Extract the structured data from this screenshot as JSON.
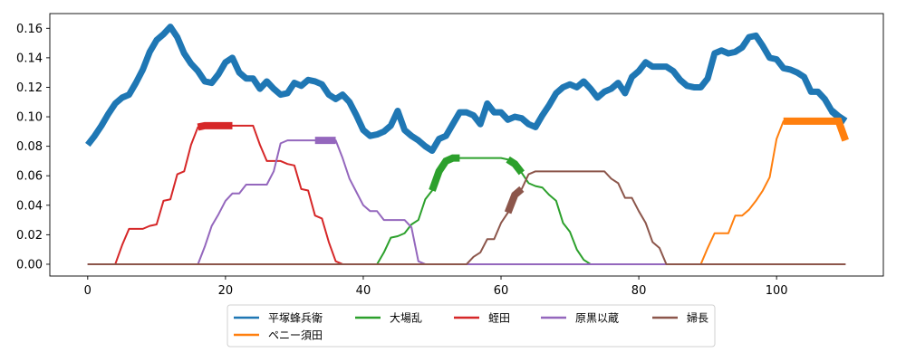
{
  "chart_data": {
    "type": "line",
    "xlim": [
      -5.5,
      115.5
    ],
    "ylim": [
      -0.008,
      0.17
    ],
    "x_ticks": [
      0,
      20,
      40,
      60,
      80,
      100
    ],
    "y_ticks": [
      0.0,
      0.02,
      0.04,
      0.06,
      0.08,
      0.1,
      0.12,
      0.14,
      0.16
    ],
    "x_tick_labels": [
      "0",
      "20",
      "40",
      "60",
      "80",
      "100"
    ],
    "y_tick_labels": [
      "0.00",
      "0.02",
      "0.04",
      "0.06",
      "0.08",
      "0.10",
      "0.12",
      "0.14",
      "0.16"
    ],
    "grid": false,
    "legend_position": "bottom-center",
    "series": [
      {
        "name": "平塚蜂兵衛",
        "color": "#1f77b4",
        "points": [
          [
            0,
            0.081
          ],
          [
            1,
            0.087
          ],
          [
            2,
            0.094
          ],
          [
            3,
            0.102
          ],
          [
            4,
            0.109
          ],
          [
            5,
            0.113
          ],
          [
            6,
            0.115
          ],
          [
            7,
            0.123
          ],
          [
            8,
            0.132
          ],
          [
            9,
            0.144
          ],
          [
            10,
            0.152
          ],
          [
            11,
            0.156
          ],
          [
            12,
            0.161
          ],
          [
            13,
            0.154
          ],
          [
            14,
            0.143
          ],
          [
            15,
            0.136
          ],
          [
            16,
            0.131
          ],
          [
            17,
            0.124
          ],
          [
            18,
            0.123
          ],
          [
            19,
            0.129
          ],
          [
            20,
            0.137
          ],
          [
            21,
            0.14
          ],
          [
            22,
            0.13
          ],
          [
            23,
            0.126
          ],
          [
            24,
            0.126
          ],
          [
            25,
            0.119
          ],
          [
            26,
            0.124
          ],
          [
            27,
            0.119
          ],
          [
            28,
            0.115
          ],
          [
            29,
            0.116
          ],
          [
            30,
            0.123
          ],
          [
            31,
            0.121
          ],
          [
            32,
            0.125
          ],
          [
            33,
            0.124
          ],
          [
            34,
            0.122
          ],
          [
            35,
            0.115
          ],
          [
            36,
            0.112
          ],
          [
            37,
            0.115
          ],
          [
            38,
            0.11
          ],
          [
            39,
            0.101
          ],
          [
            40,
            0.091
          ],
          [
            41,
            0.087
          ],
          [
            42,
            0.088
          ],
          [
            43,
            0.09
          ],
          [
            44,
            0.094
          ],
          [
            45,
            0.104
          ],
          [
            46,
            0.091
          ],
          [
            47,
            0.087
          ],
          [
            48,
            0.084
          ],
          [
            49,
            0.08
          ],
          [
            50,
            0.077
          ],
          [
            51,
            0.085
          ],
          [
            52,
            0.087
          ],
          [
            53,
            0.095
          ],
          [
            54,
            0.103
          ],
          [
            55,
            0.103
          ],
          [
            56,
            0.101
          ],
          [
            57,
            0.095
          ],
          [
            58,
            0.109
          ],
          [
            59,
            0.103
          ],
          [
            60,
            0.103
          ],
          [
            61,
            0.098
          ],
          [
            62,
            0.1
          ],
          [
            63,
            0.099
          ],
          [
            64,
            0.095
          ],
          [
            65,
            0.093
          ],
          [
            66,
            0.101
          ],
          [
            67,
            0.108
          ],
          [
            68,
            0.116
          ],
          [
            69,
            0.12
          ],
          [
            70,
            0.122
          ],
          [
            71,
            0.12
          ],
          [
            72,
            0.124
          ],
          [
            73,
            0.119
          ],
          [
            74,
            0.113
          ],
          [
            75,
            0.117
          ],
          [
            76,
            0.119
          ],
          [
            77,
            0.123
          ],
          [
            78,
            0.116
          ],
          [
            79,
            0.127
          ],
          [
            80,
            0.131
          ],
          [
            81,
            0.137
          ],
          [
            82,
            0.134
          ],
          [
            83,
            0.134
          ],
          [
            84,
            0.134
          ],
          [
            85,
            0.131
          ],
          [
            86,
            0.125
          ],
          [
            87,
            0.121
          ],
          [
            88,
            0.12
          ],
          [
            89,
            0.12
          ],
          [
            90,
            0.126
          ],
          [
            91,
            0.143
          ],
          [
            92,
            0.145
          ],
          [
            93,
            0.143
          ],
          [
            94,
            0.144
          ],
          [
            95,
            0.147
          ],
          [
            96,
            0.154
          ],
          [
            97,
            0.155
          ],
          [
            98,
            0.148
          ],
          [
            99,
            0.14
          ],
          [
            100,
            0.139
          ],
          [
            101,
            0.133
          ],
          [
            102,
            0.132
          ],
          [
            103,
            0.13
          ],
          [
            104,
            0.127
          ],
          [
            105,
            0.117
          ],
          [
            106,
            0.117
          ],
          [
            107,
            0.112
          ],
          [
            108,
            0.104
          ],
          [
            109,
            0.1
          ],
          [
            110,
            0.097
          ]
        ]
      },
      {
        "name": "ペニー須田",
        "color": "#ff7f0e",
        "points": [
          [
            0,
            0
          ],
          [
            89,
            0
          ],
          [
            90,
            0.011
          ],
          [
            91,
            0.021
          ],
          [
            92,
            0.021
          ],
          [
            93,
            0.021
          ],
          [
            94,
            0.033
          ],
          [
            95,
            0.033
          ],
          [
            96,
            0.037
          ],
          [
            97,
            0.043
          ],
          [
            98,
            0.05
          ],
          [
            99,
            0.059
          ],
          [
            100,
            0.085
          ],
          [
            101,
            0.097
          ],
          [
            102,
            0.097
          ],
          [
            103,
            0.097
          ],
          [
            104,
            0.097
          ],
          [
            105,
            0.097
          ],
          [
            106,
            0.097
          ],
          [
            107,
            0.097
          ],
          [
            108,
            0.097
          ],
          [
            109,
            0.097
          ],
          [
            110,
            0.084
          ]
        ]
      },
      {
        "name": "大場乱",
        "color": "#2ca02c",
        "points": [
          [
            0,
            0
          ],
          [
            42,
            0
          ],
          [
            43,
            0.008
          ],
          [
            44,
            0.018
          ],
          [
            45,
            0.019
          ],
          [
            46,
            0.021
          ],
          [
            47,
            0.027
          ],
          [
            48,
            0.03
          ],
          [
            49,
            0.044
          ],
          [
            50,
            0.05
          ],
          [
            51,
            0.063
          ],
          [
            52,
            0.07
          ],
          [
            53,
            0.072
          ],
          [
            54,
            0.072
          ],
          [
            55,
            0.072
          ],
          [
            56,
            0.072
          ],
          [
            57,
            0.072
          ],
          [
            58,
            0.072
          ],
          [
            59,
            0.072
          ],
          [
            60,
            0.072
          ],
          [
            61,
            0.071
          ],
          [
            62,
            0.068
          ],
          [
            63,
            0.062
          ],
          [
            64,
            0.055
          ],
          [
            65,
            0.053
          ],
          [
            66,
            0.052
          ],
          [
            67,
            0.047
          ],
          [
            68,
            0.043
          ],
          [
            69,
            0.028
          ],
          [
            70,
            0.022
          ],
          [
            71,
            0.01
          ],
          [
            72,
            0.003
          ],
          [
            73,
            0
          ],
          [
            110,
            0
          ]
        ]
      },
      {
        "name": "蛭田",
        "color": "#d62728",
        "points": [
          [
            0,
            0
          ],
          [
            4,
            0
          ],
          [
            5,
            0.013
          ],
          [
            6,
            0.024
          ],
          [
            7,
            0.024
          ],
          [
            8,
            0.024
          ],
          [
            9,
            0.026
          ],
          [
            10,
            0.027
          ],
          [
            11,
            0.043
          ],
          [
            12,
            0.044
          ],
          [
            13,
            0.061
          ],
          [
            14,
            0.063
          ],
          [
            15,
            0.081
          ],
          [
            16,
            0.093
          ],
          [
            17,
            0.094
          ],
          [
            18,
            0.094
          ],
          [
            19,
            0.094
          ],
          [
            20,
            0.094
          ],
          [
            21,
            0.094
          ],
          [
            22,
            0.094
          ],
          [
            23,
            0.094
          ],
          [
            24,
            0.094
          ],
          [
            25,
            0.081
          ],
          [
            26,
            0.07
          ],
          [
            27,
            0.07
          ],
          [
            28,
            0.07
          ],
          [
            29,
            0.068
          ],
          [
            30,
            0.067
          ],
          [
            31,
            0.051
          ],
          [
            32,
            0.05
          ],
          [
            33,
            0.033
          ],
          [
            34,
            0.031
          ],
          [
            35,
            0.015
          ],
          [
            36,
            0.002
          ],
          [
            37,
            0
          ],
          [
            110,
            0
          ]
        ]
      },
      {
        "name": "原黒以蔵",
        "color": "#9467bd",
        "points": [
          [
            0,
            0
          ],
          [
            16,
            0
          ],
          [
            17,
            0.012
          ],
          [
            18,
            0.026
          ],
          [
            19,
            0.034
          ],
          [
            20,
            0.043
          ],
          [
            21,
            0.048
          ],
          [
            22,
            0.048
          ],
          [
            23,
            0.054
          ],
          [
            24,
            0.054
          ],
          [
            25,
            0.054
          ],
          [
            26,
            0.054
          ],
          [
            27,
            0.063
          ],
          [
            28,
            0.082
          ],
          [
            29,
            0.084
          ],
          [
            30,
            0.084
          ],
          [
            31,
            0.084
          ],
          [
            32,
            0.084
          ],
          [
            33,
            0.084
          ],
          [
            34,
            0.084
          ],
          [
            35,
            0.084
          ],
          [
            36,
            0.084
          ],
          [
            37,
            0.072
          ],
          [
            38,
            0.058
          ],
          [
            39,
            0.049
          ],
          [
            40,
            0.04
          ],
          [
            41,
            0.036
          ],
          [
            42,
            0.036
          ],
          [
            43,
            0.03
          ],
          [
            44,
            0.03
          ],
          [
            45,
            0.03
          ],
          [
            46,
            0.03
          ],
          [
            47,
            0.025
          ],
          [
            48,
            0.002
          ],
          [
            49,
            0
          ],
          [
            110,
            0
          ]
        ]
      },
      {
        "name": "婦長",
        "color": "#8c564b",
        "points": [
          [
            0,
            0
          ],
          [
            55,
            0
          ],
          [
            56,
            0.005
          ],
          [
            57,
            0.008
          ],
          [
            58,
            0.017
          ],
          [
            59,
            0.017
          ],
          [
            60,
            0.028
          ],
          [
            61,
            0.035
          ],
          [
            62,
            0.047
          ],
          [
            63,
            0.051
          ],
          [
            64,
            0.061
          ],
          [
            65,
            0.063
          ],
          [
            66,
            0.063
          ],
          [
            67,
            0.063
          ],
          [
            68,
            0.063
          ],
          [
            69,
            0.063
          ],
          [
            70,
            0.063
          ],
          [
            71,
            0.063
          ],
          [
            72,
            0.063
          ],
          [
            73,
            0.063
          ],
          [
            74,
            0.063
          ],
          [
            75,
            0.063
          ],
          [
            76,
            0.058
          ],
          [
            77,
            0.055
          ],
          [
            78,
            0.045
          ],
          [
            79,
            0.045
          ],
          [
            80,
            0.036
          ],
          [
            81,
            0.028
          ],
          [
            82,
            0.015
          ],
          [
            83,
            0.011
          ],
          [
            84,
            0
          ],
          [
            110,
            0
          ]
        ]
      }
    ],
    "highlights": [
      {
        "series": "平塚蜂兵衛",
        "x": [
          108,
          109,
          110
        ]
      },
      {
        "series": "ペニー須田",
        "x": [
          101,
          102,
          103,
          104,
          105,
          106,
          107,
          108,
          109,
          110
        ]
      },
      {
        "series": "大場乱",
        "x": [
          50,
          51,
          52,
          53,
          54
        ]
      },
      {
        "series": "大場乱",
        "x": [
          61,
          62,
          63
        ]
      },
      {
        "series": "蛭田",
        "x": [
          16,
          17,
          18,
          19,
          20,
          21
        ]
      },
      {
        "series": "原黒以蔵",
        "x": [
          33,
          34,
          35,
          36
        ]
      },
      {
        "series": "婦長",
        "x": [
          61,
          62,
          63
        ]
      }
    ]
  },
  "legend": {
    "rows": [
      [
        "平塚蜂兵衛",
        "大場乱",
        "蛭田",
        "原黒以蔵",
        "婦長"
      ],
      [
        "ペニー須田"
      ]
    ]
  }
}
